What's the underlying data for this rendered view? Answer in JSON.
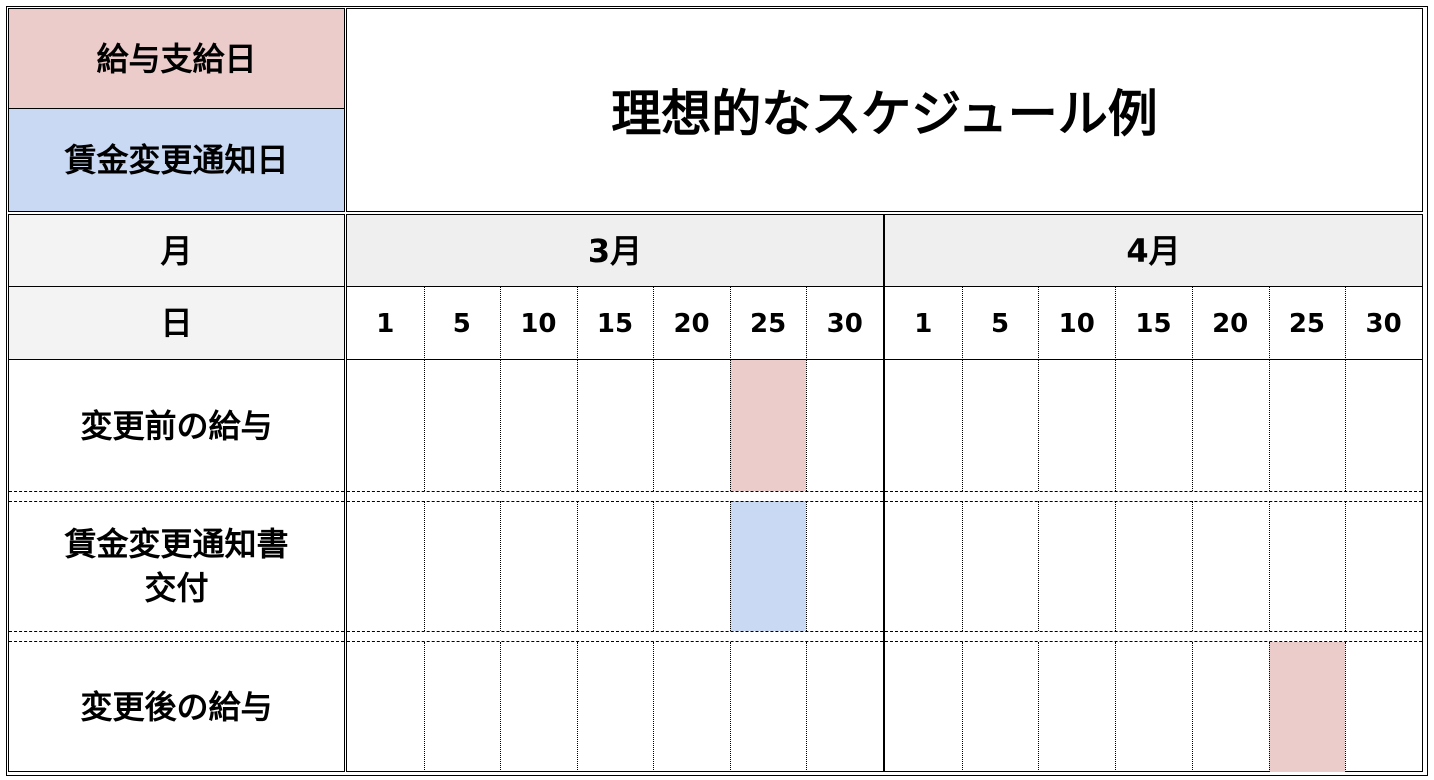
{
  "legend": {
    "payday": {
      "label": "給与支給日",
      "color": "#eccccb"
    },
    "notice": {
      "label": "賃金変更通知日",
      "color": "#cad9f3"
    }
  },
  "title": "理想的なスケジュール例",
  "header": {
    "month_label": "月",
    "day_label": "日",
    "header_bg": "#f3f3f3"
  },
  "months": [
    {
      "label": "3月"
    },
    {
      "label": "4月"
    }
  ],
  "days": [
    "1",
    "5",
    "10",
    "15",
    "20",
    "25",
    "30"
  ],
  "rows": [
    {
      "label": "変更前の給与",
      "highlight": {
        "month": "3月",
        "day": "25",
        "type": "payday"
      }
    },
    {
      "label": "賃金変更通知書\n交付",
      "highlight": {
        "month": "3月",
        "day": "25",
        "type": "notice"
      }
    },
    {
      "label": "変更後の給与",
      "highlight": {
        "month": "4月",
        "day": "25",
        "type": "payday"
      }
    }
  ]
}
